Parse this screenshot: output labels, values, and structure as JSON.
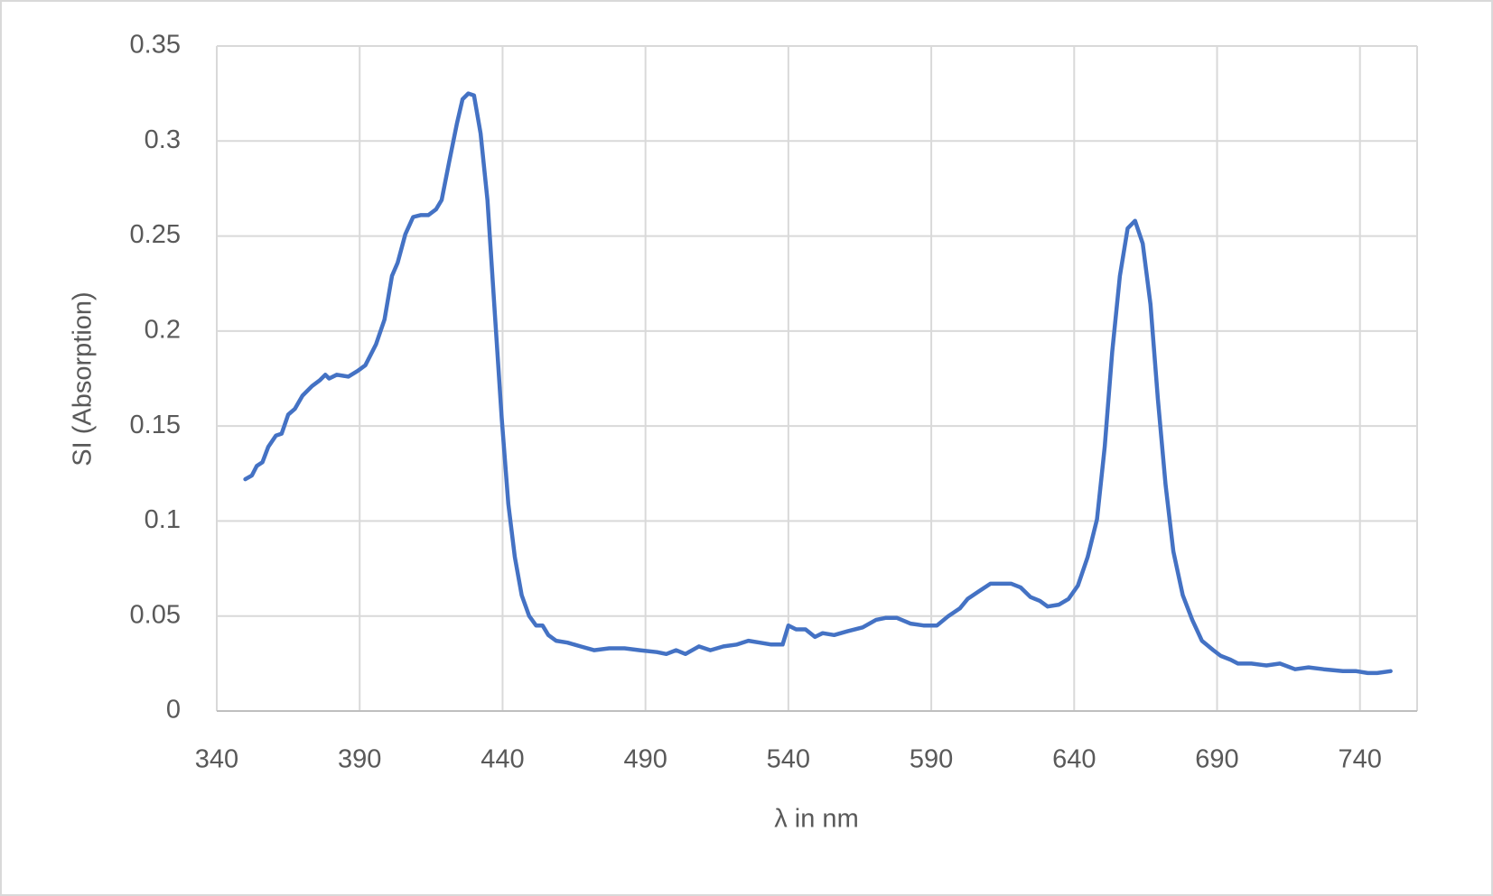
{
  "chart_data": {
    "type": "line",
    "x_label": "λ in nm",
    "y_label": "SI (Absorption)",
    "xlim": [
      340,
      760
    ],
    "xticks": [
      340,
      390,
      440,
      490,
      540,
      590,
      640,
      690,
      740
    ],
    "ylim": [
      0,
      0.35
    ],
    "yticks": [
      0,
      0.05,
      0.1,
      0.15,
      0.2,
      0.25,
      0.3,
      0.35
    ],
    "grid": true,
    "x": [
      350,
      352.3,
      354,
      356,
      358,
      360.7,
      362.7,
      365,
      367.3,
      370,
      373.3,
      376,
      378,
      379.3,
      382,
      386,
      389.3,
      392,
      395.7,
      398.7,
      401.3,
      403.3,
      406,
      408.7,
      411.3,
      414,
      416.7,
      418.7,
      421.3,
      424,
      426,
      428,
      430,
      432.3,
      434.7,
      437.3,
      439.7,
      442,
      444.3,
      446.7,
      449.3,
      451.7,
      454,
      456,
      458.7,
      462.7,
      467.3,
      472,
      477.3,
      482.7,
      488,
      494,
      497.3,
      500.7,
      504,
      508.7,
      512.7,
      517.3,
      522,
      526,
      530,
      534,
      538,
      540,
      542.7,
      546,
      549.3,
      552,
      556,
      560.7,
      566,
      570.7,
      574,
      578,
      582.7,
      587.3,
      592,
      596,
      600,
      602.7,
      606.7,
      610.7,
      614.7,
      618,
      621.3,
      624.7,
      628,
      630.7,
      634.7,
      638,
      641.3,
      644.7,
      648,
      650.7,
      653.3,
      656,
      658.7,
      661.3,
      664,
      666.7,
      669.3,
      672,
      674.7,
      678,
      681.3,
      684.7,
      688.7,
      691.3,
      694.7,
      697.3,
      702,
      707.3,
      712,
      717.3,
      722,
      727.3,
      734,
      738.7,
      742.7,
      746,
      750.7
    ],
    "series": [
      {
        "color": "#4472c4",
        "values": [
          0.122,
          0.124,
          0.129,
          0.131,
          0.139,
          0.145,
          0.146,
          0.156,
          0.159,
          0.166,
          0.171,
          0.174,
          0.177,
          0.175,
          0.177,
          0.176,
          0.179,
          0.182,
          0.193,
          0.206,
          0.229,
          0.236,
          0.251,
          0.26,
          0.261,
          0.261,
          0.264,
          0.269,
          0.289,
          0.309,
          0.322,
          0.325,
          0.324,
          0.304,
          0.269,
          0.209,
          0.154,
          0.109,
          0.081,
          0.061,
          0.05,
          0.045,
          0.045,
          0.04,
          0.037,
          0.036,
          0.034,
          0.032,
          0.033,
          0.033,
          0.032,
          0.031,
          0.03,
          0.032,
          0.03,
          0.034,
          0.032,
          0.034,
          0.035,
          0.037,
          0.036,
          0.035,
          0.035,
          0.045,
          0.043,
          0.043,
          0.039,
          0.041,
          0.04,
          0.042,
          0.044,
          0.048,
          0.049,
          0.049,
          0.046,
          0.045,
          0.045,
          0.05,
          0.054,
          0.059,
          0.063,
          0.067,
          0.067,
          0.067,
          0.065,
          0.06,
          0.058,
          0.055,
          0.056,
          0.059,
          0.066,
          0.081,
          0.101,
          0.139,
          0.189,
          0.229,
          0.254,
          0.258,
          0.246,
          0.214,
          0.164,
          0.119,
          0.084,
          0.061,
          0.048,
          0.037,
          0.032,
          0.029,
          0.027,
          0.025,
          0.025,
          0.024,
          0.025,
          0.022,
          0.023,
          0.022,
          0.021,
          0.021,
          0.02,
          0.02,
          0.021
        ]
      }
    ]
  }
}
